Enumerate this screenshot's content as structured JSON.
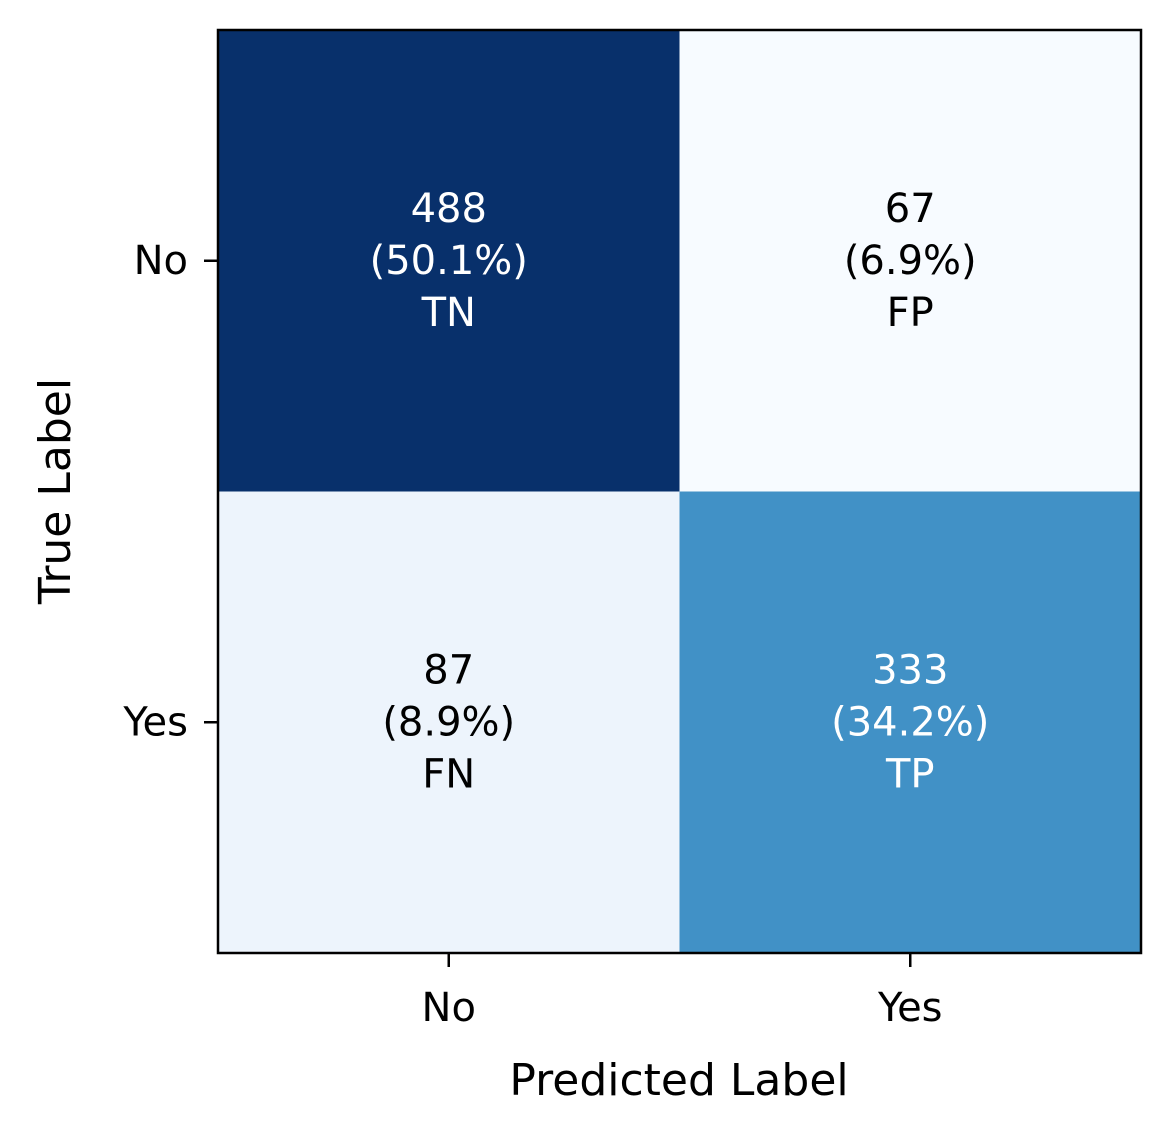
{
  "chart_data": {
    "type": "heatmap",
    "title": "",
    "xlabel": "Predicted Label",
    "ylabel": "True Label",
    "x_categories": [
      "No",
      "Yes"
    ],
    "y_categories": [
      "No",
      "Yes"
    ],
    "colormap": "Blues",
    "cells": [
      {
        "row": 0,
        "col": 0,
        "count": 488,
        "percent": "(50.1%)",
        "tag": "TN",
        "fill": "#08306b",
        "text_color": "#ffffff"
      },
      {
        "row": 0,
        "col": 1,
        "count": 67,
        "percent": "(6.9%)",
        "tag": "FP",
        "fill": "#f7fbff",
        "text_color": "#000000"
      },
      {
        "row": 1,
        "col": 0,
        "count": 87,
        "percent": "(8.9%)",
        "tag": "FN",
        "fill": "#edf4fc",
        "text_color": "#000000"
      },
      {
        "row": 1,
        "col": 1,
        "count": 333,
        "percent": "(34.2%)",
        "tag": "TP",
        "fill": "#4191c6",
        "text_color": "#ffffff"
      }
    ]
  }
}
